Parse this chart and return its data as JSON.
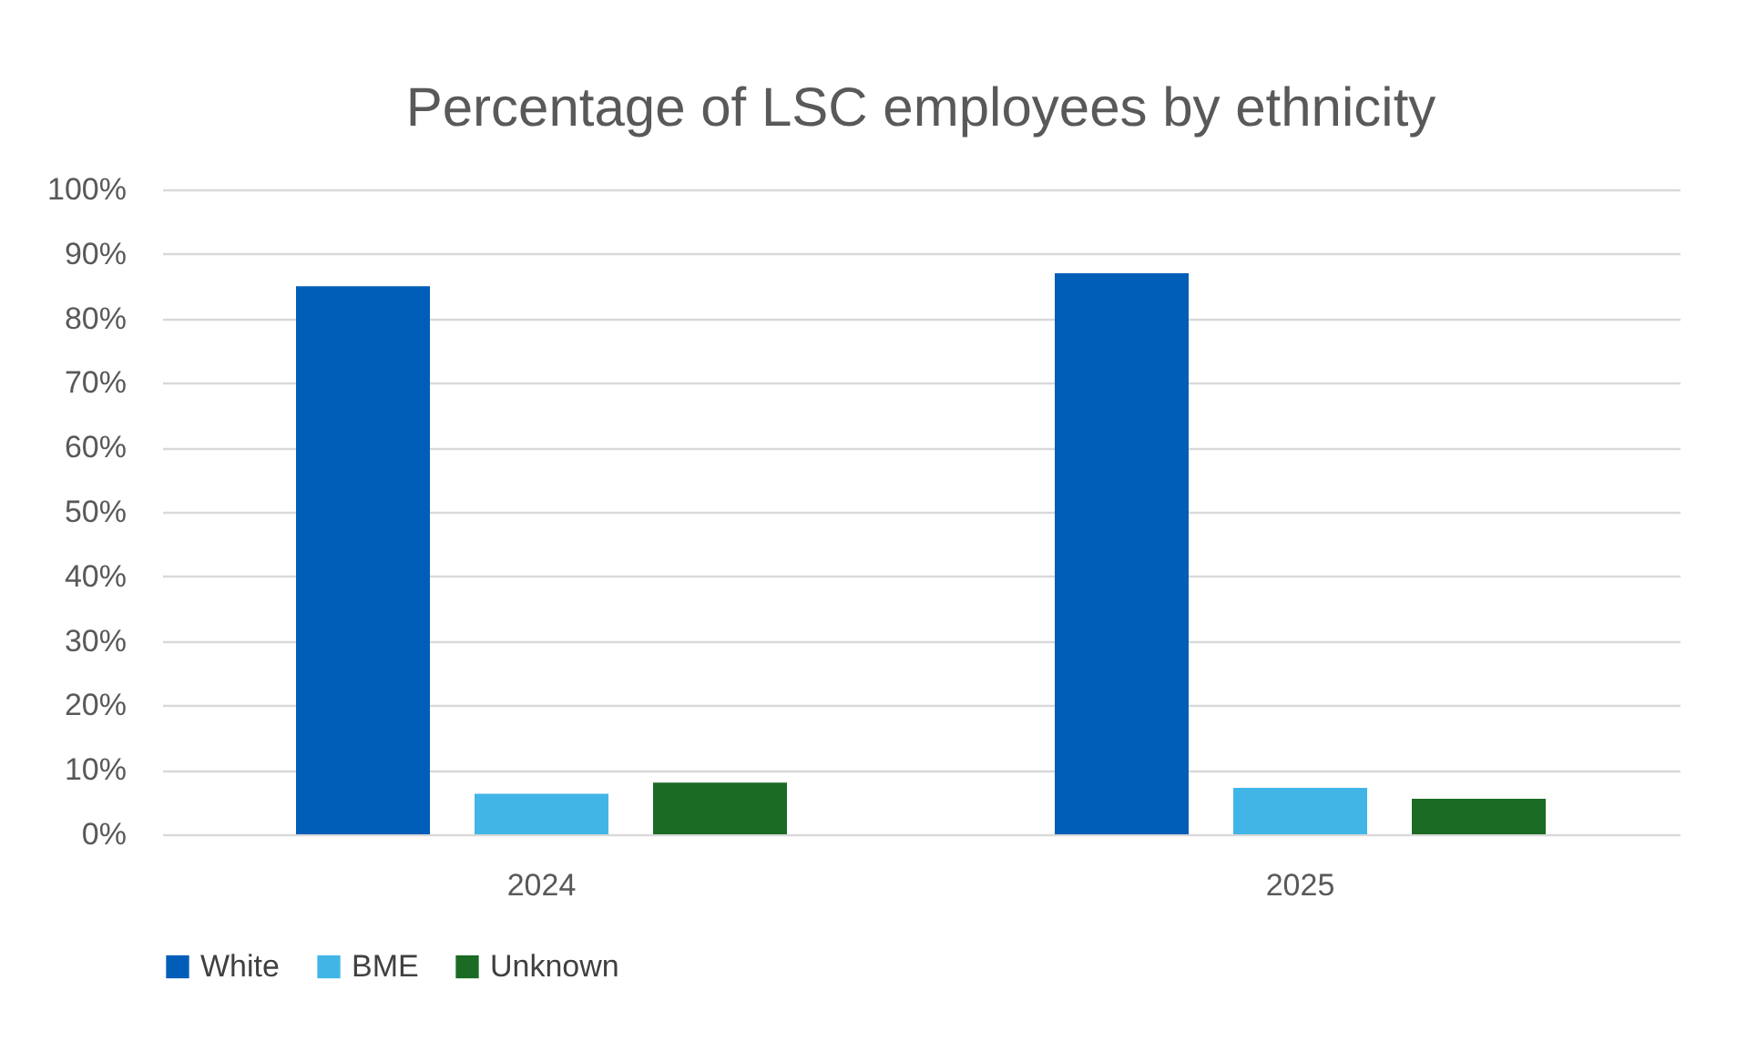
{
  "chart_data": {
    "type": "bar",
    "title": "Percentage of LSC employees by ethnicity",
    "categories": [
      "2024",
      "2025"
    ],
    "series": [
      {
        "name": "White",
        "color": "#005eb8",
        "values": [
          85,
          87
        ]
      },
      {
        "name": "BME",
        "color": "#41b6e6",
        "values": [
          6.3,
          7.2
        ]
      },
      {
        "name": "Unknown",
        "color": "#1b6b24",
        "values": [
          8,
          5.5
        ]
      }
    ],
    "ylim": [
      0,
      100
    ],
    "yticks": [
      {
        "value": 0,
        "label": "0%"
      },
      {
        "value": 10,
        "label": "10%"
      },
      {
        "value": 20,
        "label": "20%"
      },
      {
        "value": 30,
        "label": "30%"
      },
      {
        "value": 40,
        "label": "40%"
      },
      {
        "value": 50,
        "label": "50%"
      },
      {
        "value": 60,
        "label": "60%"
      },
      {
        "value": 70,
        "label": "70%"
      },
      {
        "value": 80,
        "label": "80%"
      },
      {
        "value": 90,
        "label": "90%"
      },
      {
        "value": 100,
        "label": "100%"
      }
    ],
    "grid": "y",
    "legend": "bottom"
  }
}
